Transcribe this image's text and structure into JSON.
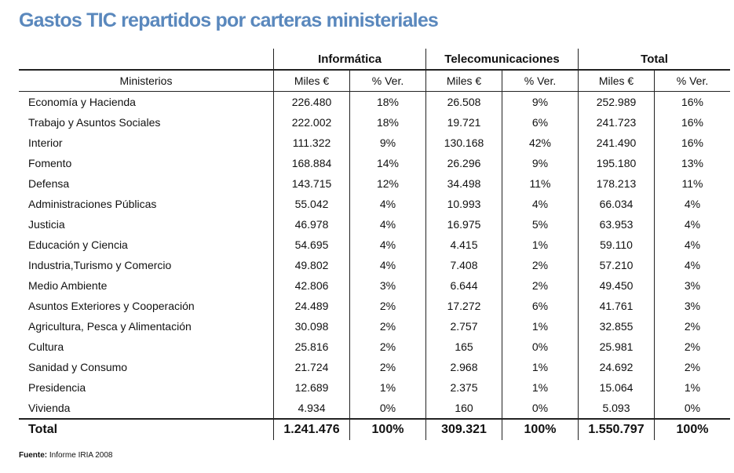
{
  "title": "Gastos TIC repartidos por carteras ministeriales",
  "table": {
    "groups": [
      "Informática",
      "Telecomunicaciones",
      "Total"
    ],
    "headers": [
      "Ministerios",
      "Miles €",
      "% Ver.",
      "Miles €",
      "% Ver.",
      "Miles €",
      "% Ver."
    ],
    "rows": [
      [
        "Economía y Hacienda",
        "226.480",
        "18%",
        "26.508",
        "9%",
        "252.989",
        "16%"
      ],
      [
        "Trabajo y Asuntos Sociales",
        "222.002",
        "18%",
        "19.721",
        "6%",
        "241.723",
        "16%"
      ],
      [
        "Interior",
        "111.322",
        "9%",
        "130.168",
        "42%",
        "241.490",
        "16%"
      ],
      [
        "Fomento",
        "168.884",
        "14%",
        "26.296",
        "9%",
        "195.180",
        "13%"
      ],
      [
        "Defensa",
        "143.715",
        "12%",
        "34.498",
        "11%",
        "178.213",
        "11%"
      ],
      [
        "Administraciones Públicas",
        "55.042",
        "4%",
        "10.993",
        "4%",
        "66.034",
        "4%"
      ],
      [
        "Justicia",
        "46.978",
        "4%",
        "16.975",
        "5%",
        "63.953",
        "4%"
      ],
      [
        "Educación y Ciencia",
        "54.695",
        "4%",
        "4.415",
        "1%",
        "59.110",
        "4%"
      ],
      [
        "Industria,Turismo y Comercio",
        "49.802",
        "4%",
        "7.408",
        "2%",
        "57.210",
        "4%"
      ],
      [
        "Medio Ambiente",
        "42.806",
        "3%",
        "6.644",
        "2%",
        "49.450",
        "3%"
      ],
      [
        "Asuntos Exteriores y Cooperación",
        "24.489",
        "2%",
        "17.272",
        "6%",
        "41.761",
        "3%"
      ],
      [
        "Agricultura, Pesca y Alimentación",
        "30.098",
        "2%",
        "2.757",
        "1%",
        "32.855",
        "2%"
      ],
      [
        "Cultura",
        "25.816",
        "2%",
        "165",
        "0%",
        "25.981",
        "2%"
      ],
      [
        "Sanidad y Consumo",
        "21.724",
        "2%",
        "2.968",
        "1%",
        "24.692",
        "2%"
      ],
      [
        "Presidencia",
        "12.689",
        "1%",
        "2.375",
        "1%",
        "15.064",
        "1%"
      ],
      [
        "Vivienda",
        "4.934",
        "0%",
        "160",
        "0%",
        "5.093",
        "0%"
      ]
    ],
    "total": [
      "Total",
      "1.241.476",
      "100%",
      "309.321",
      "100%",
      "1.550.797",
      "100%"
    ]
  },
  "source": {
    "label": "Fuente:",
    "text": "Informe IRIA 2008"
  }
}
